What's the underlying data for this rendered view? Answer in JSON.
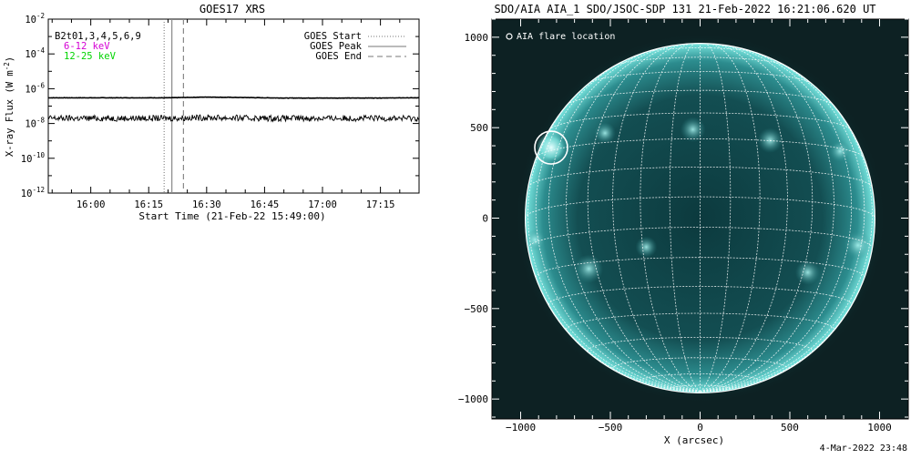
{
  "chart_data": [
    {
      "type": "line",
      "title": "GOES17 XRS",
      "xlabel": "Start Time (21-Feb-22 15:49:00)",
      "ylabel": "X-ray Flux (W m",
      "ylabel_sup": "-2",
      "ylabel_close": ")",
      "y_scale": "log",
      "ylim": [
        1e-12,
        0.01
      ],
      "xlim": [
        "15:49",
        "17:25"
      ],
      "x_ticks": [
        "16:00",
        "16:15",
        "16:30",
        "16:45",
        "17:00",
        "17:15"
      ],
      "y_tick_exponents": [
        "-2",
        "-4",
        "-6",
        "-8",
        "-10",
        "-12"
      ],
      "legend_title": "B2t01,3,4,5,6,9",
      "series": [
        {
          "name": "6-12 keV",
          "color": "#d400d4",
          "x": [
            "15:49",
            "16:20",
            "16:30",
            "16:40",
            "16:50",
            "17:00",
            "17:10",
            "17:25"
          ],
          "values": [
            3e-07,
            3e-07,
            3.3e-07,
            3.1e-07,
            2.9e-07,
            2.9e-07,
            2.9e-07,
            3e-07
          ]
        },
        {
          "name": "12-25 keV",
          "color": "#00d400",
          "x": [
            "15:49",
            "16:20",
            "16:30",
            "16:40",
            "16:50",
            "17:00",
            "17:10",
            "17:25"
          ],
          "values": [
            2e-08,
            2e-08,
            2.2e-08,
            2e-08,
            2e-08,
            2e-08,
            2e-08,
            2e-08
          ]
        }
      ],
      "markers": [
        {
          "name": "GOES Start",
          "time": "16:19",
          "style": "dotted"
        },
        {
          "name": "GOES Peak",
          "time": "16:21",
          "style": "solid"
        },
        {
          "name": "GOES End",
          "time": "16:24",
          "style": "dashed"
        }
      ]
    },
    {
      "type": "scatter",
      "title": "SDO/AIA AIA_1 SDO/JSOC-SDP 131 21-Feb-2022 16:21:06.620 UT",
      "xlabel": "X (arcsec)",
      "ylabel": "",
      "xlim": [
        -1160,
        1160
      ],
      "ylim": [
        -1110,
        1100
      ],
      "x_ticks": [
        -1000,
        -500,
        0,
        500,
        1000
      ],
      "y_ticks": [
        1000,
        500,
        0,
        -500,
        -1000
      ],
      "legend": "AIA flare location",
      "flare_location": {
        "x": -830,
        "y": 390
      },
      "solar_radius_arcsec": 970
    }
  ],
  "footer": {
    "timestamp": "4-Mar-2022 23:48"
  }
}
